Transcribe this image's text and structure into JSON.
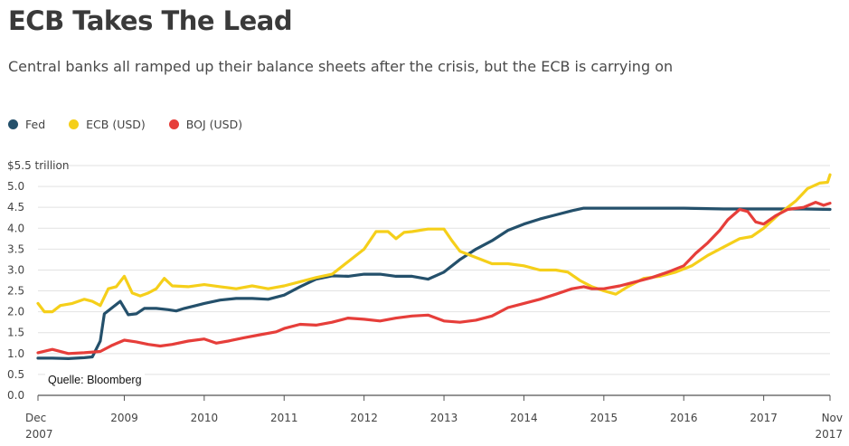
{
  "title": "ECB Takes The Lead",
  "subtitle": "Central banks all ramped up their balance sheets after the crisis, but the ECB is carrying on",
  "source": "Quelle: Bloomberg",
  "chart_data": {
    "type": "line",
    "y_tick_labels": [
      "0.0",
      "0.5",
      "1.0",
      "1.5",
      "2.0",
      "2.5",
      "3.0",
      "3.5",
      "4.0",
      "4.5",
      "5.0",
      "$5.5 trillion"
    ],
    "y_ticks": [
      0,
      0.5,
      1,
      1.5,
      2,
      2.5,
      3,
      3.5,
      4,
      4.5,
      5,
      5.5
    ],
    "ylim": [
      0,
      5.5
    ],
    "x_ticks": [
      {
        "x": 2007.92,
        "line1": "Dec",
        "line2": "2007"
      },
      {
        "x": 2009.0,
        "line1": "2009",
        "line2": ""
      },
      {
        "x": 2010.0,
        "line1": "2010",
        "line2": ""
      },
      {
        "x": 2011.0,
        "line1": "2011",
        "line2": ""
      },
      {
        "x": 2012.0,
        "line1": "2012",
        "line2": ""
      },
      {
        "x": 2013.0,
        "line1": "2013",
        "line2": ""
      },
      {
        "x": 2014.0,
        "line1": "2014",
        "line2": ""
      },
      {
        "x": 2015.0,
        "line1": "2015",
        "line2": ""
      },
      {
        "x": 2016.0,
        "line1": "2016",
        "line2": ""
      },
      {
        "x": 2017.0,
        "line1": "2017",
        "line2": ""
      },
      {
        "x": 2017.83,
        "line1": "Nov",
        "line2": "2017"
      }
    ],
    "xlim": [
      2007.92,
      2017.83
    ],
    "grid": true,
    "legend_position": "top-left",
    "series": [
      {
        "name": "Fed",
        "color": "#24506b",
        "points": [
          [
            2007.92,
            0.89
          ],
          [
            2008.1,
            0.89
          ],
          [
            2008.3,
            0.88
          ],
          [
            2008.5,
            0.9
          ],
          [
            2008.6,
            0.92
          ],
          [
            2008.7,
            1.3
          ],
          [
            2008.75,
            1.95
          ],
          [
            2008.85,
            2.1
          ],
          [
            2008.95,
            2.25
          ],
          [
            2009.05,
            1.93
          ],
          [
            2009.15,
            1.95
          ],
          [
            2009.25,
            2.08
          ],
          [
            2009.4,
            2.08
          ],
          [
            2009.55,
            2.05
          ],
          [
            2009.65,
            2.02
          ],
          [
            2009.75,
            2.08
          ],
          [
            2009.9,
            2.15
          ],
          [
            2010.0,
            2.2
          ],
          [
            2010.2,
            2.28
          ],
          [
            2010.4,
            2.32
          ],
          [
            2010.6,
            2.32
          ],
          [
            2010.8,
            2.3
          ],
          [
            2011.0,
            2.4
          ],
          [
            2011.2,
            2.6
          ],
          [
            2011.4,
            2.78
          ],
          [
            2011.6,
            2.86
          ],
          [
            2011.8,
            2.85
          ],
          [
            2012.0,
            2.9
          ],
          [
            2012.2,
            2.9
          ],
          [
            2012.4,
            2.85
          ],
          [
            2012.6,
            2.85
          ],
          [
            2012.8,
            2.78
          ],
          [
            2013.0,
            2.95
          ],
          [
            2013.2,
            3.25
          ],
          [
            2013.4,
            3.5
          ],
          [
            2013.6,
            3.7
          ],
          [
            2013.8,
            3.95
          ],
          [
            2014.0,
            4.1
          ],
          [
            2014.2,
            4.22
          ],
          [
            2014.4,
            4.32
          ],
          [
            2014.6,
            4.42
          ],
          [
            2014.75,
            4.48
          ],
          [
            2015.0,
            4.48
          ],
          [
            2015.5,
            4.48
          ],
          [
            2016.0,
            4.48
          ],
          [
            2016.5,
            4.46
          ],
          [
            2017.0,
            4.46
          ],
          [
            2017.5,
            4.46
          ],
          [
            2017.83,
            4.45
          ]
        ]
      },
      {
        "name": "ECB (USD)",
        "color": "#f5cf1a",
        "points": [
          [
            2007.92,
            2.2
          ],
          [
            2008.0,
            2.0
          ],
          [
            2008.1,
            2.0
          ],
          [
            2008.2,
            2.15
          ],
          [
            2008.35,
            2.2
          ],
          [
            2008.5,
            2.3
          ],
          [
            2008.6,
            2.25
          ],
          [
            2008.7,
            2.15
          ],
          [
            2008.8,
            2.55
          ],
          [
            2008.9,
            2.6
          ],
          [
            2009.0,
            2.85
          ],
          [
            2009.1,
            2.45
          ],
          [
            2009.2,
            2.38
          ],
          [
            2009.3,
            2.45
          ],
          [
            2009.4,
            2.55
          ],
          [
            2009.5,
            2.8
          ],
          [
            2009.6,
            2.62
          ],
          [
            2009.8,
            2.6
          ],
          [
            2010.0,
            2.65
          ],
          [
            2010.2,
            2.6
          ],
          [
            2010.4,
            2.55
          ],
          [
            2010.6,
            2.62
          ],
          [
            2010.8,
            2.55
          ],
          [
            2011.0,
            2.62
          ],
          [
            2011.2,
            2.72
          ],
          [
            2011.4,
            2.82
          ],
          [
            2011.6,
            2.9
          ],
          [
            2011.8,
            3.2
          ],
          [
            2012.0,
            3.5
          ],
          [
            2012.15,
            3.92
          ],
          [
            2012.3,
            3.92
          ],
          [
            2012.4,
            3.75
          ],
          [
            2012.5,
            3.9
          ],
          [
            2012.6,
            3.92
          ],
          [
            2012.8,
            3.98
          ],
          [
            2013.0,
            3.98
          ],
          [
            2013.1,
            3.7
          ],
          [
            2013.2,
            3.45
          ],
          [
            2013.4,
            3.3
          ],
          [
            2013.6,
            3.15
          ],
          [
            2013.8,
            3.15
          ],
          [
            2014.0,
            3.1
          ],
          [
            2014.2,
            3.0
          ],
          [
            2014.4,
            3.0
          ],
          [
            2014.55,
            2.95
          ],
          [
            2014.7,
            2.75
          ],
          [
            2014.85,
            2.6
          ],
          [
            2015.0,
            2.5
          ],
          [
            2015.15,
            2.42
          ],
          [
            2015.3,
            2.6
          ],
          [
            2015.5,
            2.8
          ],
          [
            2015.7,
            2.85
          ],
          [
            2015.9,
            2.95
          ],
          [
            2016.1,
            3.1
          ],
          [
            2016.3,
            3.35
          ],
          [
            2016.5,
            3.55
          ],
          [
            2016.7,
            3.75
          ],
          [
            2016.85,
            3.8
          ],
          [
            2017.0,
            4.0
          ],
          [
            2017.2,
            4.35
          ],
          [
            2017.4,
            4.65
          ],
          [
            2017.55,
            4.95
          ],
          [
            2017.7,
            5.08
          ],
          [
            2017.8,
            5.1
          ],
          [
            2017.83,
            5.28
          ]
        ]
      },
      {
        "name": "BOJ (USD)",
        "color": "#e63e3a",
        "points": [
          [
            2007.92,
            1.02
          ],
          [
            2008.1,
            1.1
          ],
          [
            2008.3,
            1.0
          ],
          [
            2008.5,
            1.02
          ],
          [
            2008.7,
            1.05
          ],
          [
            2008.85,
            1.2
          ],
          [
            2009.0,
            1.32
          ],
          [
            2009.15,
            1.28
          ],
          [
            2009.3,
            1.22
          ],
          [
            2009.45,
            1.18
          ],
          [
            2009.6,
            1.22
          ],
          [
            2009.8,
            1.3
          ],
          [
            2010.0,
            1.35
          ],
          [
            2010.15,
            1.25
          ],
          [
            2010.3,
            1.3
          ],
          [
            2010.5,
            1.38
          ],
          [
            2010.7,
            1.45
          ],
          [
            2010.9,
            1.52
          ],
          [
            2011.0,
            1.6
          ],
          [
            2011.2,
            1.7
          ],
          [
            2011.4,
            1.68
          ],
          [
            2011.6,
            1.75
          ],
          [
            2011.8,
            1.85
          ],
          [
            2012.0,
            1.82
          ],
          [
            2012.2,
            1.78
          ],
          [
            2012.4,
            1.85
          ],
          [
            2012.6,
            1.9
          ],
          [
            2012.8,
            1.92
          ],
          [
            2013.0,
            1.78
          ],
          [
            2013.2,
            1.75
          ],
          [
            2013.4,
            1.8
          ],
          [
            2013.6,
            1.9
          ],
          [
            2013.8,
            2.1
          ],
          [
            2014.0,
            2.2
          ],
          [
            2014.2,
            2.3
          ],
          [
            2014.4,
            2.42
          ],
          [
            2014.6,
            2.55
          ],
          [
            2014.75,
            2.6
          ],
          [
            2014.85,
            2.55
          ],
          [
            2015.0,
            2.55
          ],
          [
            2015.2,
            2.62
          ],
          [
            2015.4,
            2.72
          ],
          [
            2015.6,
            2.82
          ],
          [
            2015.8,
            2.95
          ],
          [
            2016.0,
            3.1
          ],
          [
            2016.15,
            3.4
          ],
          [
            2016.3,
            3.65
          ],
          [
            2016.45,
            3.95
          ],
          [
            2016.55,
            4.2
          ],
          [
            2016.7,
            4.45
          ],
          [
            2016.8,
            4.4
          ],
          [
            2016.9,
            4.15
          ],
          [
            2017.0,
            4.1
          ],
          [
            2017.15,
            4.3
          ],
          [
            2017.3,
            4.45
          ],
          [
            2017.5,
            4.5
          ],
          [
            2017.65,
            4.62
          ],
          [
            2017.75,
            4.55
          ],
          [
            2017.83,
            4.6
          ]
        ]
      }
    ]
  }
}
